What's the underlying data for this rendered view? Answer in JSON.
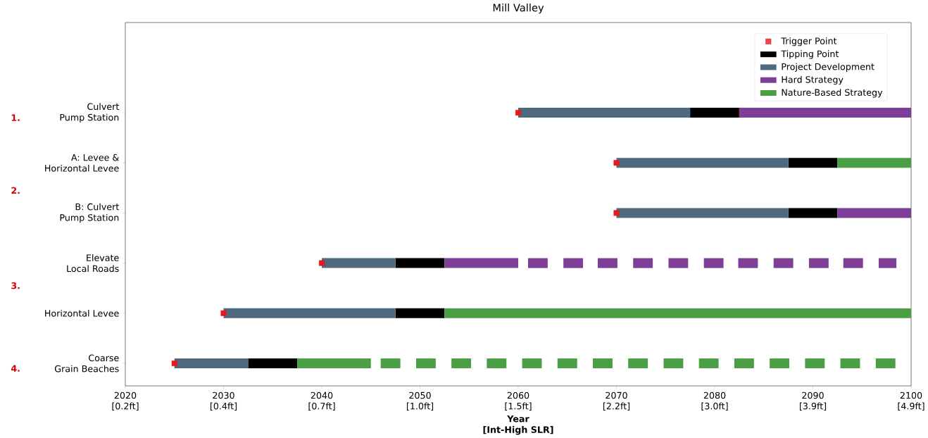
{
  "chart_data": {
    "type": "bar",
    "orientation": "horizontal",
    "title": "Mill Valley",
    "xlabel": "Year\n[Int-High SLR]",
    "categories": [
      "Culvert\nPump Station",
      "A: Levee &\nHorizontal Levee",
      "B: Culvert\nPump Station",
      "Elevate\nLocal Roads",
      "Horizontal Levee",
      "Coarse\nGrain Beaches"
    ],
    "xlim": [
      2020,
      2100
    ],
    "xticks": [
      2020,
      2030,
      2040,
      2050,
      2060,
      2070,
      2080,
      2090,
      2100
    ],
    "series": [
      {
        "name": "Trigger Point",
        "type": "scatter",
        "marker": "square",
        "color": "#e41a1c",
        "values": [
          2060,
          2070,
          2070,
          2040,
          2030,
          2025
        ]
      },
      {
        "name": "Tipping Point",
        "color": "#000000",
        "base": [
          2077.5,
          2087.5,
          2087.5,
          2047.5,
          2047.5,
          2032.5
        ],
        "values": [
          5,
          5,
          5,
          5,
          5,
          5
        ]
      },
      {
        "name": "Project Development",
        "color": "#4f6a7e",
        "base": [
          2060,
          2070,
          2070,
          2040,
          2030,
          2025
        ],
        "values": [
          17.5,
          17.5,
          17.5,
          7.5,
          17.5,
          7.5
        ]
      },
      {
        "name": "Hard Strategy",
        "color": "#7f3f98",
        "base": [
          2082.5,
          null,
          2092.5,
          2052.5,
          null,
          null
        ],
        "values": [
          17.5,
          null,
          7.5,
          7.5,
          null,
          null
        ]
      },
      {
        "name": "Nature-Based Strategy",
        "color": "#4a9f44",
        "base": [
          null,
          2092.5,
          null,
          null,
          2052.5,
          2037.5
        ],
        "values": [
          null,
          7.5,
          null,
          null,
          47.5,
          7.5
        ]
      },
      {
        "colors": [
          null,
          null,
          null,
          "#7f3f98",
          null,
          "#4a9f44"
        ],
        "base": [
          null,
          null,
          null,
          2061.0,
          null,
          2046.0
        ],
        "values": [
          null,
          null,
          null,
          2,
          null,
          2
        ]
      },
      {
        "colors": [
          null,
          null,
          null,
          "#7f3f98",
          null,
          "#4a9f44"
        ],
        "base": [
          null,
          null,
          null,
          2064.6,
          null,
          2049.6
        ],
        "values": [
          null,
          null,
          null,
          2,
          null,
          2
        ]
      },
      {
        "colors": [
          null,
          null,
          null,
          "#7f3f98",
          null,
          "#4a9f44"
        ],
        "base": [
          null,
          null,
          null,
          2068.1,
          null,
          2053.2
        ],
        "values": [
          null,
          null,
          null,
          2,
          null,
          2
        ]
      },
      {
        "colors": [
          null,
          null,
          null,
          "#7f3f98",
          null,
          "#4a9f44"
        ],
        "base": [
          null,
          null,
          null,
          2071.7,
          null,
          2056.8
        ],
        "values": [
          null,
          null,
          null,
          2,
          null,
          2
        ]
      },
      {
        "colors": [
          null,
          null,
          null,
          "#7f3f98",
          null,
          "#4a9f44"
        ],
        "base": [
          null,
          null,
          null,
          2075.3,
          null,
          2060.4
        ],
        "values": [
          null,
          null,
          null,
          2,
          null,
          2
        ]
      },
      {
        "colors": [
          null,
          null,
          null,
          "#7f3f98",
          null,
          "#4a9f44"
        ],
        "base": [
          null,
          null,
          null,
          2078.9,
          null,
          2064.0
        ],
        "values": [
          null,
          null,
          null,
          2,
          null,
          2
        ]
      },
      {
        "colors": [
          null,
          null,
          null,
          "#7f3f98",
          null,
          "#4a9f44"
        ],
        "base": [
          null,
          null,
          null,
          2082.4,
          null,
          2067.6
        ],
        "values": [
          null,
          null,
          null,
          2,
          null,
          2
        ]
      },
      {
        "colors": [
          null,
          null,
          null,
          "#7f3f98",
          null,
          "#4a9f44"
        ],
        "base": [
          null,
          null,
          null,
          2086.0,
          null,
          2071.2
        ],
        "values": [
          null,
          null,
          null,
          2,
          null,
          2
        ]
      },
      {
        "colors": [
          null,
          null,
          null,
          "#7f3f98",
          null,
          "#4a9f44"
        ],
        "base": [
          null,
          null,
          null,
          2089.6,
          null,
          2074.8
        ],
        "values": [
          null,
          null,
          null,
          2,
          null,
          2
        ]
      },
      {
        "colors": [
          null,
          null,
          null,
          "#7f3f98",
          null,
          "#4a9f44"
        ],
        "base": [
          null,
          null,
          null,
          2093.1,
          null,
          2078.4
        ],
        "values": [
          null,
          null,
          null,
          2,
          null,
          2
        ]
      },
      {
        "colors": [
          null,
          null,
          null,
          "#7f3f98",
          null,
          "#4a9f44"
        ],
        "base": [
          null,
          null,
          null,
          2096.7,
          null,
          2082.0
        ],
        "values": [
          null,
          null,
          null,
          1.8,
          null,
          2
        ]
      },
      {
        "colors": [
          null,
          null,
          null,
          null,
          null,
          "#4a9f44"
        ],
        "base": [
          null,
          null,
          null,
          null,
          null,
          2085.6
        ],
        "values": [
          null,
          null,
          null,
          null,
          null,
          2
        ]
      },
      {
        "colors": [
          null,
          null,
          null,
          null,
          null,
          "#4a9f44"
        ],
        "base": [
          null,
          null,
          null,
          null,
          null,
          2089.2
        ],
        "values": [
          null,
          null,
          null,
          null,
          null,
          2
        ]
      },
      {
        "colors": [
          null,
          null,
          null,
          null,
          null,
          "#4a9f44"
        ],
        "base": [
          null,
          null,
          null,
          null,
          null,
          2092.8
        ],
        "values": [
          null,
          null,
          null,
          null,
          null,
          2
        ]
      },
      {
        "colors": [
          null,
          null,
          null,
          null,
          null,
          "#4a9f44"
        ],
        "base": [
          null,
          null,
          null,
          null,
          null,
          2096.4
        ],
        "values": [
          null,
          null,
          null,
          null,
          null,
          2
        ]
      }
    ],
    "annotations": [
      "1.",
      "2.",
      "3.",
      "4.",
      "[0.2ft]",
      "[0.4ft]",
      "[0.7ft]",
      "[1.0ft]",
      "[1.5ft]",
      "[2.2ft]",
      "[3.0ft]",
      "[3.9ft]",
      "[4.9ft]"
    ],
    "legend": "top right",
    "grid": false
  }
}
